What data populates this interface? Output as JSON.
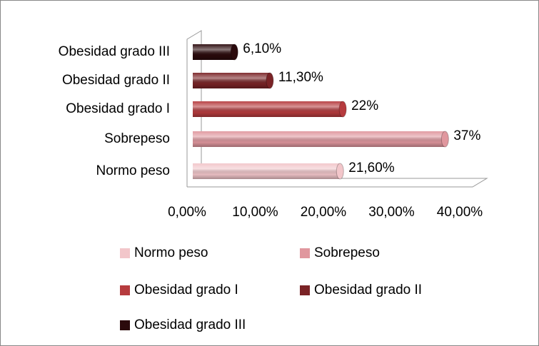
{
  "chart_data": {
    "type": "bar",
    "orientation": "horizontal",
    "categories": [
      "Normo peso",
      "Sobrepeso",
      "Obesidad grado I",
      "Obesidad grado II",
      "Obesidad grado III"
    ],
    "values": [
      21.6,
      37,
      22,
      11.3,
      6.1
    ],
    "value_labels": [
      "21,60%",
      "37%",
      "22%",
      "11,30%",
      "6,10%"
    ],
    "colors": [
      "#f2c6ca",
      "#e0979e",
      "#b63b3e",
      "#7a2326",
      "#2b0a0c"
    ],
    "xlim": [
      0,
      40
    ],
    "xticks": [
      {
        "value": 0,
        "label": "0,00%"
      },
      {
        "value": 10,
        "label": "10,00%"
      },
      {
        "value": 20,
        "label": "20,00%"
      },
      {
        "value": 30,
        "label": "30,00%"
      },
      {
        "value": 40,
        "label": "40,00%"
      }
    ],
    "legend": "bottom"
  }
}
